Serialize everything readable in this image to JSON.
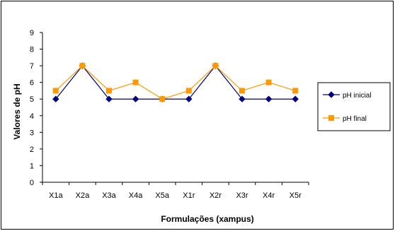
{
  "chart_data": {
    "type": "line",
    "categories": [
      "X1a",
      "X2a",
      "X3a",
      "X4a",
      "X5a",
      "X1r",
      "X2r",
      "X3r",
      "X4r",
      "X5r"
    ],
    "series": [
      {
        "name": "pH inicial",
        "values": [
          5,
          7,
          5,
          5,
          5,
          5,
          7,
          5,
          5,
          5
        ],
        "color": "#000080",
        "marker": "diamond"
      },
      {
        "name": "pH final",
        "values": [
          5.5,
          7,
          5.5,
          6,
          5,
          5.5,
          7,
          5.5,
          6,
          5.5
        ],
        "color": "#FF9900",
        "marker": "square"
      }
    ],
    "xlabel": "Formulações (xampus)",
    "ylabel": "Valores de pH",
    "ylim": [
      0,
      9
    ],
    "yticks": [
      "0",
      "1",
      "2",
      "3",
      "4",
      "5",
      "6",
      "7",
      "8",
      "9"
    ],
    "grid": false,
    "legend": "right"
  }
}
